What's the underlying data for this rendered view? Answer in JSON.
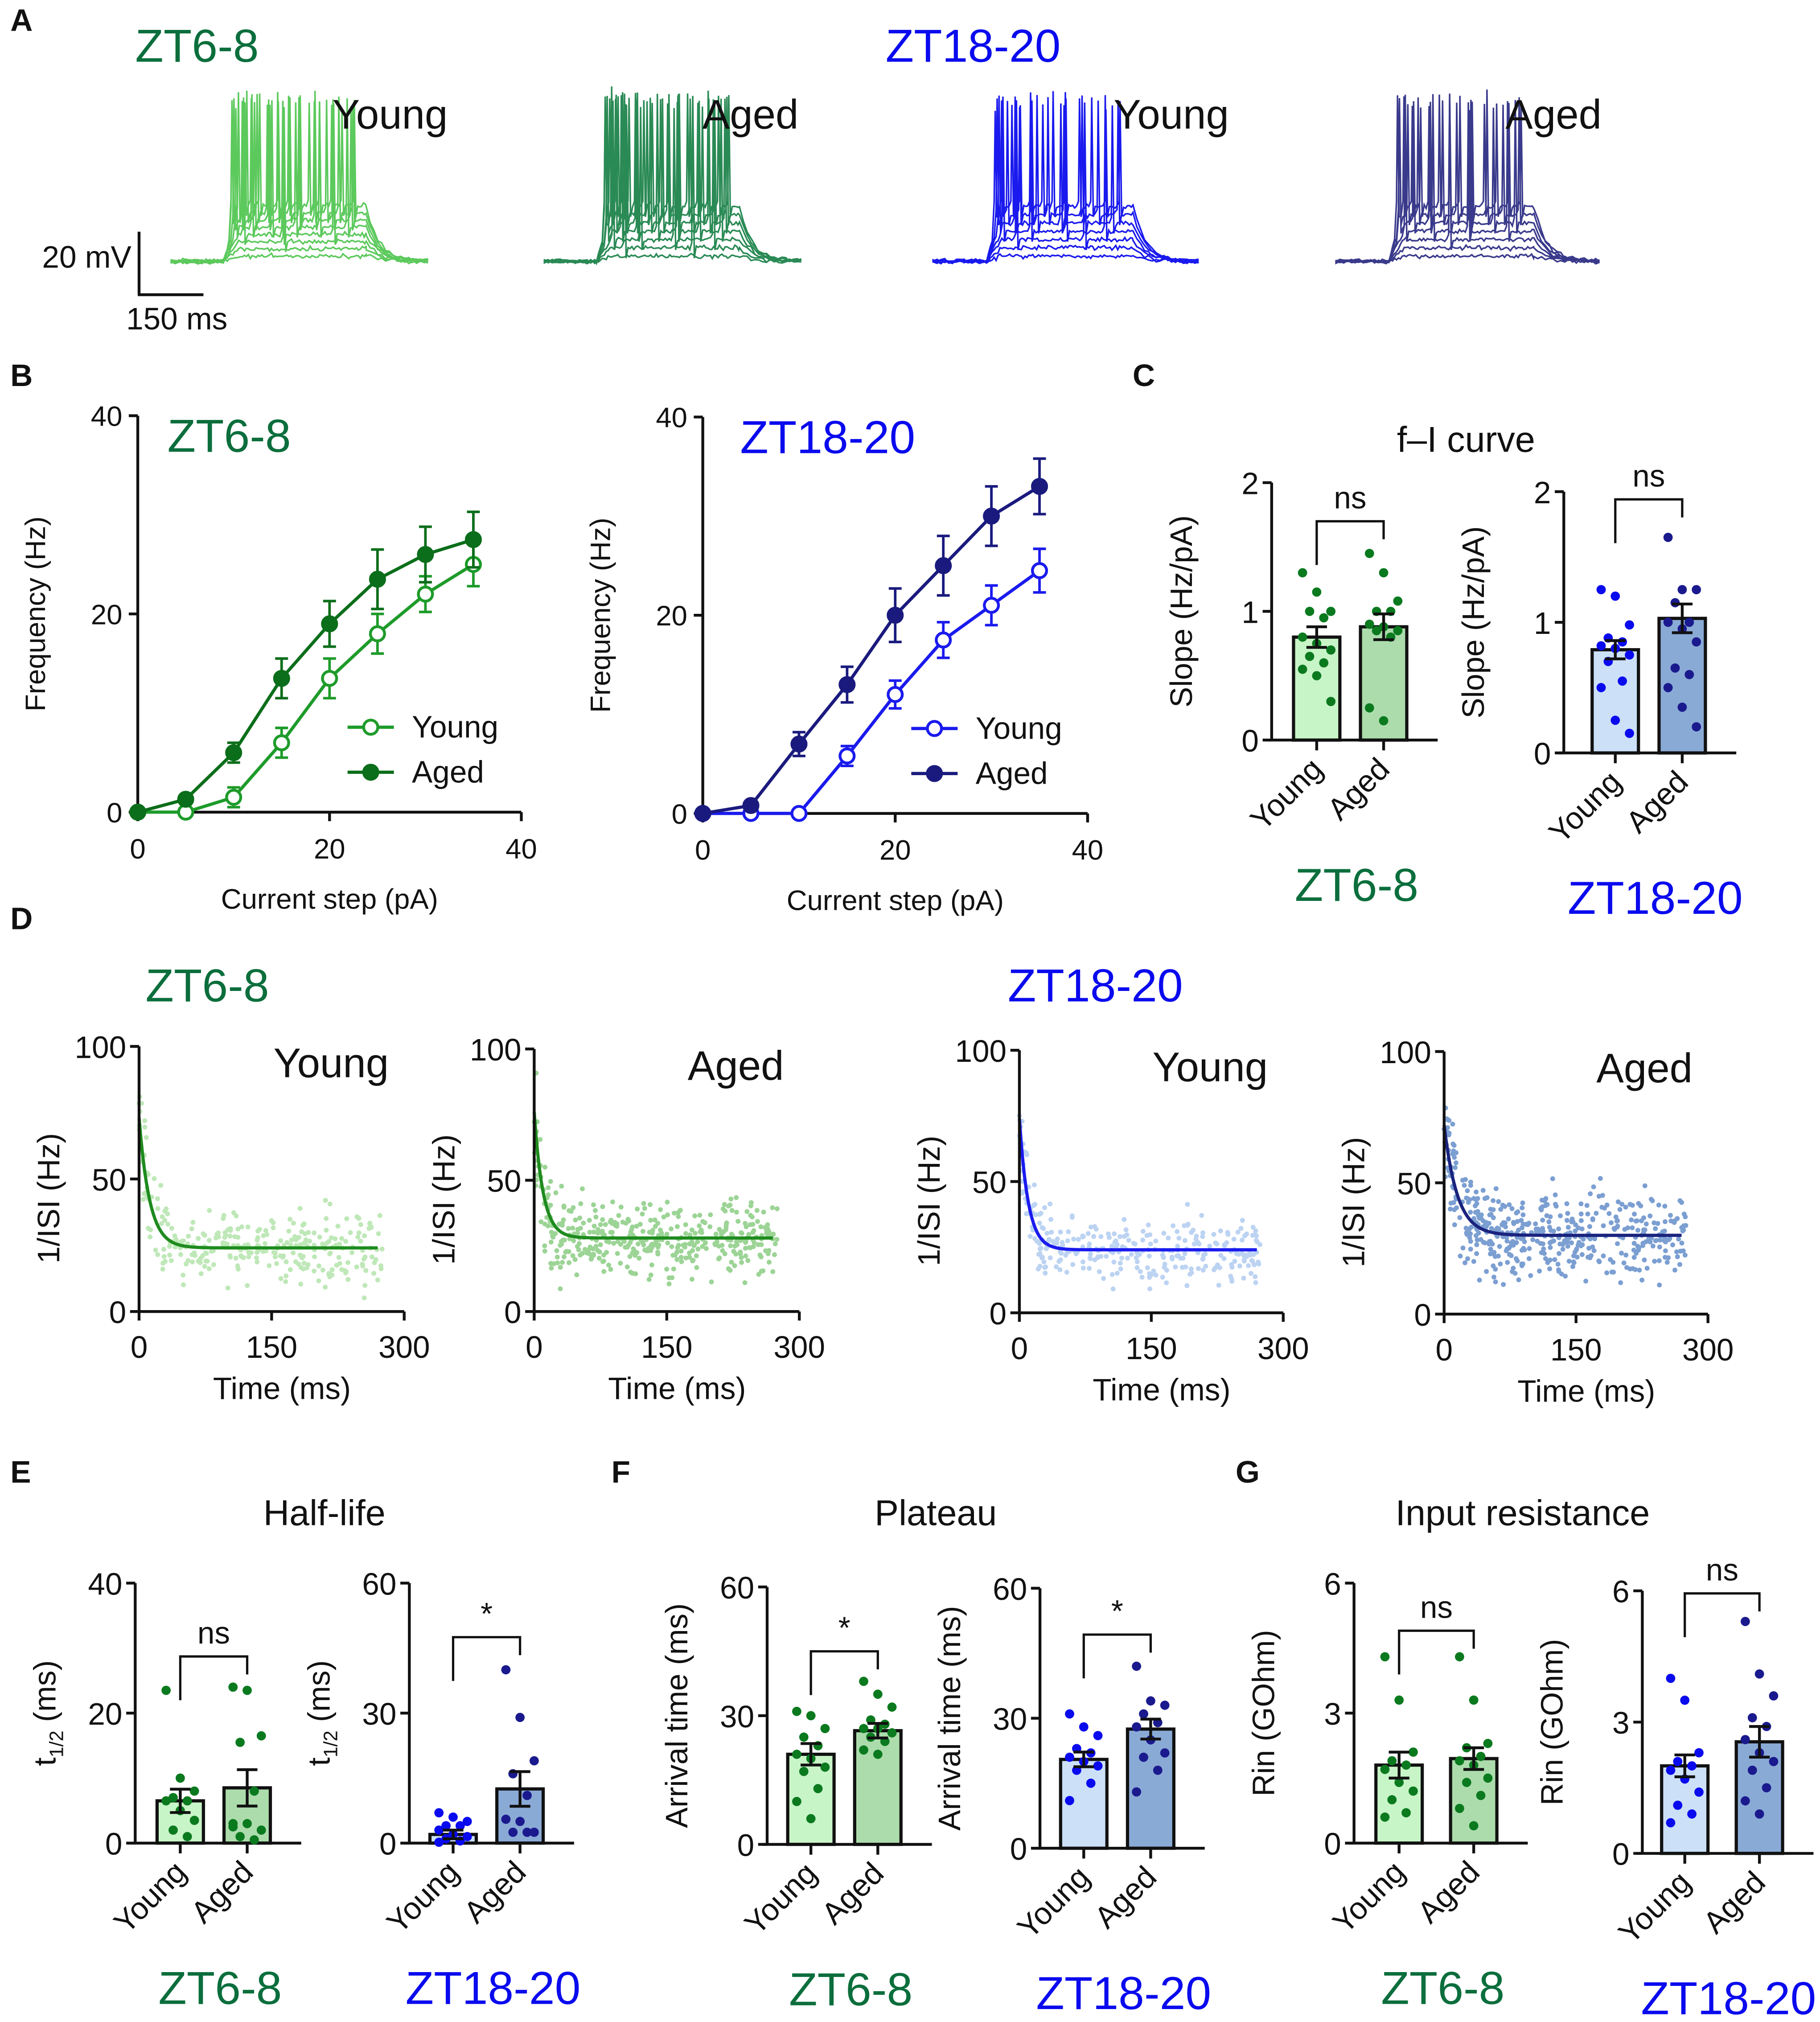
{
  "figure": {
    "panels": [
      "A",
      "B",
      "C",
      "D",
      "E",
      "F",
      "G"
    ],
    "groups": {
      "day": "ZT6-8",
      "night": "ZT18-20"
    },
    "conditions": {
      "young": "Young",
      "aged": "Aged"
    },
    "colors": {
      "day": "#0b6e3c",
      "night": "#0a0aee",
      "axis": "#111111"
    },
    "scale_bar": {
      "voltage": "20 mV",
      "time": "150 ms"
    },
    "titles": {
      "C": "f–I curve",
      "E": "Half-life",
      "F": "Plateau",
      "G": "Input resistance"
    }
  },
  "traces": [
    {
      "id": "A1",
      "group": "ZT6-8",
      "label": "Young",
      "color": "#5cc95c",
      "spikes_per_sweep": [
        0,
        0,
        1,
        3,
        6,
        9,
        12,
        14
      ]
    },
    {
      "id": "A2",
      "group": "ZT6-8",
      "label": "Aged",
      "color": "#2a8a55",
      "spikes_per_sweep": [
        0,
        2,
        4,
        7,
        10,
        13,
        16
      ]
    },
    {
      "id": "A3",
      "group": "ZT18-20",
      "label": "Young",
      "color": "#1a1aee",
      "spikes_per_sweep": [
        0,
        0,
        2,
        4,
        6,
        9,
        12
      ]
    },
    {
      "id": "A4",
      "group": "ZT18-20",
      "label": "Aged",
      "color": "#3a3a8c",
      "spikes_per_sweep": [
        0,
        0,
        1,
        4,
        7,
        10,
        13
      ]
    }
  ],
  "chart_data": [
    {
      "id": "B1",
      "type": "line",
      "title": "ZT6-8",
      "xlabel": "Current step (pA)",
      "ylabel": "Frequency (Hz)",
      "xlim": [
        0,
        40
      ],
      "ylim": [
        0,
        40
      ],
      "xticks": [
        0,
        20,
        40
      ],
      "yticks": [
        0,
        20,
        40
      ],
      "x": [
        0,
        5,
        10,
        15,
        20,
        25,
        30,
        35
      ],
      "series": [
        {
          "name": "Young",
          "marker": "open",
          "color": "#1e9b2a",
          "values": [
            0,
            0,
            1.5,
            7,
            13.5,
            18,
            22,
            25
          ],
          "sem": [
            0,
            0,
            1,
            1.5,
            2,
            2,
            1.8,
            2.2
          ]
        },
        {
          "name": "Aged",
          "marker": "filled",
          "color": "#0b6e1a",
          "values": [
            0,
            1.3,
            6,
            13.5,
            19,
            23.5,
            26,
            27.5
          ],
          "sem": [
            0,
            0.3,
            1,
            2,
            2.3,
            3,
            2.8,
            2.8
          ]
        }
      ],
      "legend": "bottom-right"
    },
    {
      "id": "B2",
      "type": "line",
      "title": "ZT18-20",
      "xlabel": "Current step (pA)",
      "ylabel": "Frequency (Hz)",
      "xlim": [
        0,
        40
      ],
      "ylim": [
        0,
        40
      ],
      "xticks": [
        0,
        20,
        40
      ],
      "yticks": [
        0,
        20,
        40
      ],
      "x": [
        0,
        5,
        10,
        15,
        20,
        25,
        30,
        35
      ],
      "series": [
        {
          "name": "Young",
          "marker": "open",
          "color": "#1a1aee",
          "values": [
            0,
            0,
            0,
            5.8,
            12,
            17.5,
            21,
            24.5
          ],
          "sem": [
            0,
            0,
            0,
            1,
            1.4,
            1.8,
            2,
            2.2
          ]
        },
        {
          "name": "Aged",
          "marker": "filled",
          "color": "#1a1a7e",
          "values": [
            0,
            0.8,
            7,
            13,
            20,
            25,
            30,
            33
          ],
          "sem": [
            0,
            0.3,
            1.2,
            1.8,
            2.7,
            3,
            3,
            2.8
          ]
        }
      ],
      "legend": "bottom-right"
    },
    {
      "id": "C1",
      "type": "bar",
      "group": "ZT6-8",
      "ylabel": "Slope (Hz/pA)",
      "yticks": [
        0,
        1,
        2
      ],
      "categories": [
        "Young",
        "Aged"
      ],
      "values": [
        0.8,
        0.88
      ],
      "sem": [
        0.08,
        0.1
      ],
      "significance": "ns",
      "fills": [
        "#c8f5c8",
        "#acdcac"
      ],
      "point_color": "#0b7a1f",
      "points": [
        [
          1.3,
          1.15,
          1.0,
          1.0,
          0.95,
          0.8,
          0.75,
          0.7,
          0.65,
          0.6,
          0.55,
          0.5,
          0.3
        ],
        [
          1.45,
          1.3,
          1.08,
          1.0,
          1.0,
          0.9,
          0.88,
          0.85,
          0.85,
          0.8,
          0.25,
          0.15
        ]
      ]
    },
    {
      "id": "C2",
      "type": "bar",
      "group": "ZT18-20",
      "ylabel": "Slope (Hz/pA)",
      "yticks": [
        0,
        1,
        2
      ],
      "categories": [
        "Young",
        "Aged"
      ],
      "values": [
        0.79,
        1.03
      ],
      "sem": [
        0.07,
        0.11
      ],
      "significance": "ns",
      "fills": [
        "#cce0f8",
        "#8aaad6"
      ],
      "point_color": "#0a0aee",
      "point_color_2": "#1a1a8e",
      "points": [
        [
          1.25,
          1.2,
          0.98,
          0.88,
          0.85,
          0.82,
          0.8,
          0.75,
          0.7,
          0.55,
          0.5,
          0.25,
          0.15
        ],
        [
          1.65,
          1.25,
          1.25,
          1.15,
          1.0,
          1.0,
          0.95,
          0.85,
          0.65,
          0.6,
          0.5,
          0.35,
          0.2
        ]
      ]
    },
    {
      "id": "E1",
      "type": "bar",
      "group": "ZT6-8",
      "ylabel": "t1/2 (ms)",
      "ylabel_parts": [
        "t",
        "1/2",
        " (ms)"
      ],
      "yticks": [
        0,
        20,
        40
      ],
      "categories": [
        "Young",
        "Aged"
      ],
      "values": [
        6.5,
        8.5
      ],
      "sem": [
        1.8,
        2.8
      ],
      "significance": "ns",
      "fills": [
        "#c8f5c8",
        "#acdcac"
      ],
      "point_color": "#0b7a1f",
      "points": [
        [
          23.5,
          10,
          8,
          7,
          6.5,
          6.5,
          5,
          3.5,
          2,
          1
        ],
        [
          24,
          23.5,
          16.5,
          15.5,
          8,
          3,
          3,
          2,
          1,
          0.5,
          2.5
        ]
      ]
    },
    {
      "id": "E2",
      "type": "bar",
      "group": "ZT18-20",
      "ylabel": "t1/2 (ms)",
      "ylabel_parts": [
        "t",
        "1/2",
        " (ms)"
      ],
      "yticks": [
        0,
        30,
        60
      ],
      "categories": [
        "Young",
        "Aged"
      ],
      "values": [
        2,
        12.5
      ],
      "sem": [
        1,
        4
      ],
      "significance": "*",
      "fills": [
        "#cce0f8",
        "#8aaad6"
      ],
      "point_color": "#0a0aee",
      "point_color_2": "#1a1a8e",
      "points": [
        [
          7,
          6,
          5,
          4,
          4,
          3,
          2,
          1.5,
          1,
          0.5,
          0.2
        ],
        [
          40,
          29,
          19,
          16,
          11,
          5.5,
          5,
          2.5,
          2.5,
          2.5
        ]
      ]
    },
    {
      "id": "F1",
      "type": "bar",
      "group": "ZT6-8",
      "ylabel": "Arrival time (ms)",
      "yticks": [
        0,
        30,
        60
      ],
      "categories": [
        "Young",
        "Aged"
      ],
      "values": [
        21,
        26.5
      ],
      "sem": [
        2.5,
        1.7
      ],
      "significance": "*",
      "fills": [
        "#c8f5c8",
        "#acdcac"
      ],
      "point_color": "#0b7a1f",
      "points": [
        [
          31,
          30,
          27,
          25,
          23,
          21,
          20,
          18,
          17,
          13,
          10,
          6
        ],
        [
          38,
          35,
          32,
          29,
          28,
          27,
          27,
          26,
          25,
          24,
          22,
          21
        ]
      ]
    },
    {
      "id": "F2",
      "type": "bar",
      "group": "ZT18-20",
      "ylabel": "Arrival time (ms)",
      "yticks": [
        0,
        30,
        60
      ],
      "categories": [
        "Young",
        "Aged"
      ],
      "values": [
        20.5,
        27.5
      ],
      "sem": [
        1.7,
        2.3
      ],
      "significance": "*",
      "fills": [
        "#cce0f8",
        "#8aaad6"
      ],
      "point_color": "#0a0aee",
      "point_color_2": "#1a1a8e",
      "points": [
        [
          31,
          28,
          26,
          23,
          22,
          21,
          20,
          19,
          18,
          15,
          11
        ],
        [
          42,
          34,
          33,
          31,
          29,
          28,
          25,
          22,
          21,
          18,
          13
        ]
      ]
    },
    {
      "id": "G1",
      "type": "bar",
      "group": "ZT6-8",
      "ylabel": "Rin (GOhm)",
      "yticks": [
        0,
        3,
        6
      ],
      "categories": [
        "Young",
        "Aged"
      ],
      "values": [
        1.8,
        1.95
      ],
      "sem": [
        0.3,
        0.25
      ],
      "significance": "ns",
      "fills": [
        "#c8f5c8",
        "#acdcac"
      ],
      "point_color": "#0b7a1f",
      "points": [
        [
          4.3,
          3.3,
          2.1,
          1.9,
          1.8,
          1.7,
          1.4,
          1.2,
          1.0,
          0.7,
          0.6
        ],
        [
          4.3,
          3.3,
          2.3,
          2.2,
          2.0,
          1.9,
          1.8,
          1.5,
          1.4,
          1.1,
          0.8,
          0.4
        ]
      ]
    },
    {
      "id": "G2",
      "type": "bar",
      "group": "ZT18-20",
      "ylabel": "Rin (GOhm)",
      "yticks": [
        0,
        3,
        6
      ],
      "categories": [
        "Young",
        "Aged"
      ],
      "values": [
        2.0,
        2.55
      ],
      "sem": [
        0.25,
        0.35
      ],
      "significance": "ns",
      "fills": [
        "#cce0f8",
        "#8aaad6"
      ],
      "point_color": "#0a0aee",
      "point_color_2": "#1a1a8e",
      "points": [
        [
          4.0,
          3.5,
          2.3,
          2.1,
          2.0,
          1.9,
          1.7,
          1.4,
          1.1,
          0.9,
          0.7
        ],
        [
          5.3,
          4.1,
          3.6,
          3.1,
          2.9,
          2.6,
          2.3,
          2.1,
          1.9,
          1.5,
          1.2,
          0.9
        ]
      ]
    },
    {
      "id": "D1",
      "type": "scatter",
      "group": "ZT6-8",
      "label": "Young",
      "xlabel": "Time (ms)",
      "ylabel": "1/ISI (Hz)",
      "xlim": [
        0,
        300
      ],
      "ylim": [
        0,
        100
      ],
      "xticks": [
        0,
        150,
        300
      ],
      "yticks": [
        0,
        50,
        100
      ],
      "fit": {
        "model": "one-phase decay",
        "start": 73,
        "plateau": 24,
        "tau_ms": 12
      },
      "n_points": 300,
      "spread_hz": 9,
      "point_color": "#bfe8b8",
      "line_color": "#1e8b1e"
    },
    {
      "id": "D2",
      "type": "scatter",
      "group": "ZT6-8",
      "label": "Aged",
      "xlabel": "Time (ms)",
      "ylabel": "1/ISI (Hz)",
      "xlim": [
        0,
        300
      ],
      "ylim": [
        0,
        100
      ],
      "xticks": [
        0,
        150,
        300
      ],
      "yticks": [
        0,
        50,
        100
      ],
      "fit": {
        "model": "one-phase decay",
        "start": 76,
        "plateau": 28,
        "tau_ms": 10
      },
      "n_points": 420,
      "spread_hz": 10,
      "point_color": "#9cd496",
      "line_color": "#1e8b1e"
    },
    {
      "id": "D3",
      "type": "scatter",
      "group": "ZT18-20",
      "label": "Young",
      "xlabel": "Time (ms)",
      "ylabel": "1/ISI (Hz)",
      "xlim": [
        0,
        300
      ],
      "ylim": [
        0,
        100
      ],
      "xticks": [
        0,
        150,
        300
      ],
      "yticks": [
        0,
        50,
        100
      ],
      "fit": {
        "model": "one-phase decay",
        "start": 74,
        "plateau": 24,
        "tau_ms": 10
      },
      "n_points": 300,
      "spread_hz": 9,
      "point_color": "#bcd3f2",
      "line_color": "#1a1aee"
    },
    {
      "id": "D4",
      "type": "scatter",
      "group": "ZT18-20",
      "label": "Aged",
      "xlabel": "Time (ms)",
      "ylabel": "1/ISI (Hz)",
      "xlim": [
        0,
        300
      ],
      "ylim": [
        0,
        100
      ],
      "xticks": [
        0,
        150,
        300
      ],
      "yticks": [
        0,
        50,
        100
      ],
      "fit": {
        "model": "one-phase decay",
        "start": 72,
        "plateau": 30,
        "tau_ms": 15
      },
      "n_points": 480,
      "spread_hz": 11,
      "point_color": "#7c9fd2",
      "line_color": "#1a237e"
    }
  ]
}
